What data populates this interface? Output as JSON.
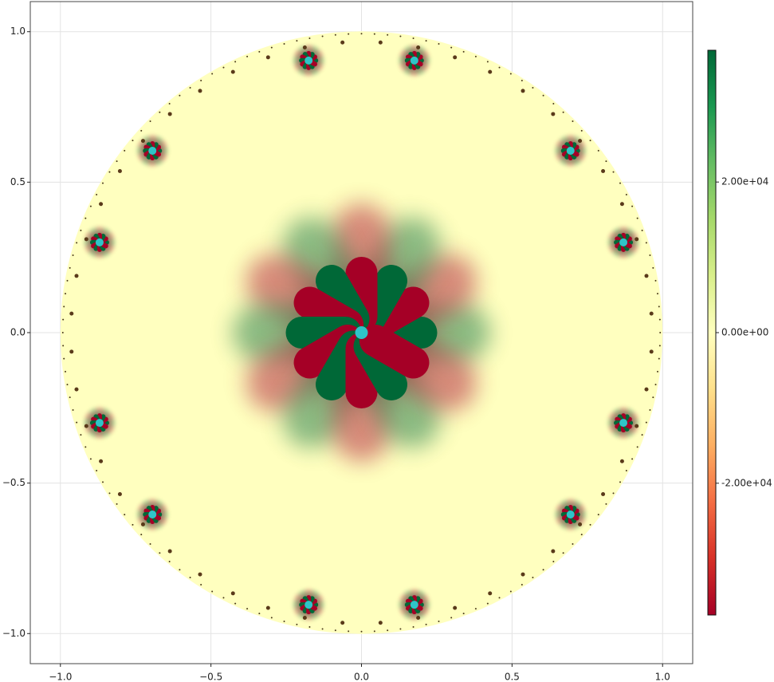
{
  "chart_data": {
    "type": "heatmap",
    "xlim": [
      -1.1,
      1.1
    ],
    "ylim": [
      -1.1,
      1.1
    ],
    "xticks": [
      {
        "value": -1,
        "label": "−1.0"
      },
      {
        "value": -0.5,
        "label": "−0.5"
      },
      {
        "value": 0,
        "label": "0.0"
      },
      {
        "value": 0.5,
        "label": "0.5"
      },
      {
        "value": 1,
        "label": "1.0"
      }
    ],
    "yticks": [
      {
        "value": -1,
        "label": "−1.0"
      },
      {
        "value": -0.5,
        "label": "−0.5"
      },
      {
        "value": 0,
        "label": "0.0"
      },
      {
        "value": 0.5,
        "label": "0.5"
      },
      {
        "value": 1,
        "label": "1.0"
      }
    ],
    "grid": true,
    "colorbar": {
      "lim": [
        -37500,
        37500
      ],
      "ticks": [
        {
          "value": -20000,
          "label": "-2.00e+04"
        },
        {
          "value": 0,
          "label": "0.00e+00"
        },
        {
          "value": 20000,
          "label": "2.00e+04"
        }
      ],
      "colormap": [
        "#a50026",
        "#d73027",
        "#f46d43",
        "#fdae61",
        "#fee08b",
        "#ffffbf",
        "#d9ef8b",
        "#a6d96a",
        "#66bd63",
        "#1a9850",
        "#006837"
      ]
    }
  }
}
